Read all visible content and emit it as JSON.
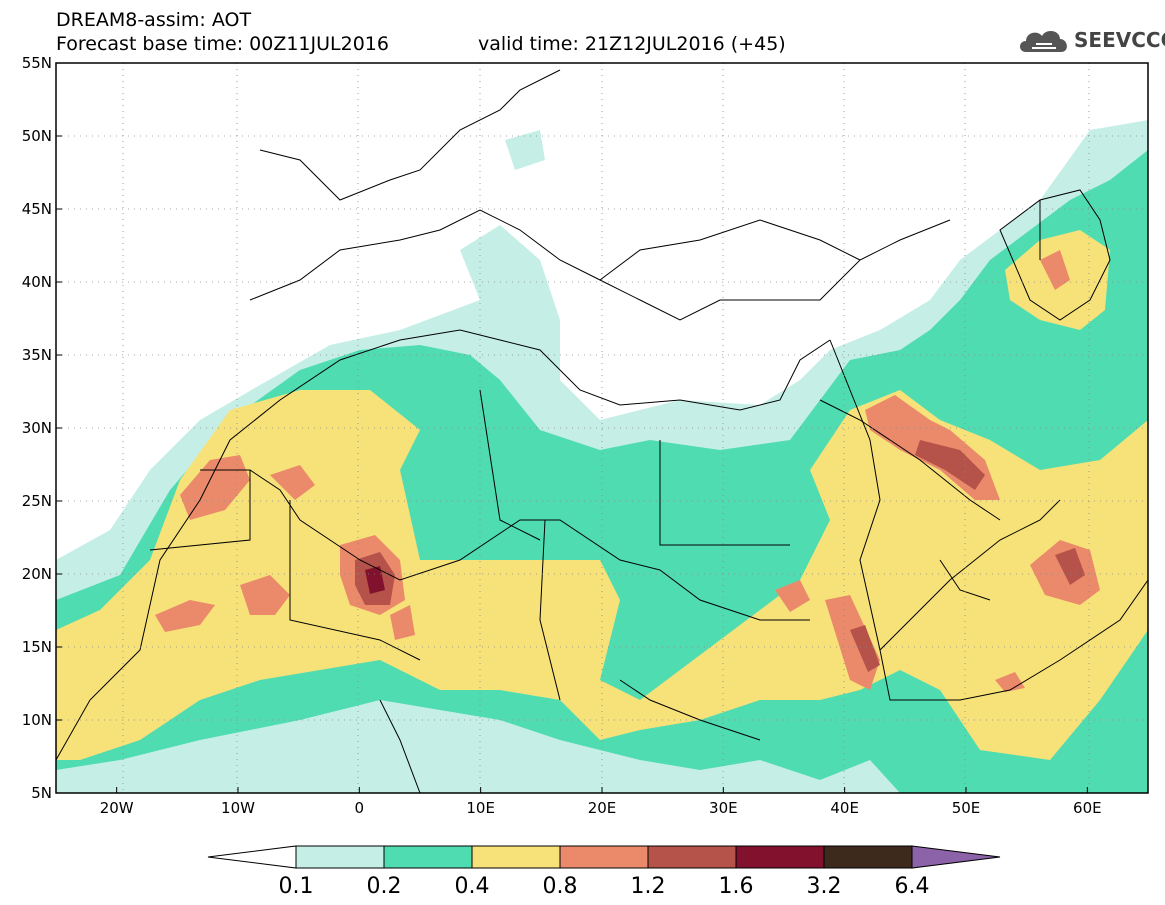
{
  "title": {
    "line1": "DREAM8-assim: AOT",
    "line2": "Forecast base time: 00Z11JUL2016",
    "valid": "valid time: 21Z12JUL2016 (+45)"
  },
  "logo": {
    "text": "SEEVCCC",
    "icon": "cloud-icon"
  },
  "map": {
    "lon_range": [
      -25,
      65
    ],
    "lat_range": [
      5,
      55
    ],
    "lat_ticks": [
      "5N",
      "10N",
      "15N",
      "20N",
      "25N",
      "30N",
      "35N",
      "40N",
      "45N",
      "50N",
      "55N"
    ],
    "lon_ticks": [
      "20W",
      "10W",
      "0",
      "10E",
      "20E",
      "30E",
      "40E",
      "50E",
      "60E"
    ]
  },
  "colorbar": {
    "labels": [
      "0.1",
      "0.2",
      "0.4",
      "0.8",
      "1.2",
      "1.6",
      "3.2",
      "6.4"
    ],
    "colors": [
      "#ffffff",
      "#c5efe6",
      "#4fdcb0",
      "#f7e27a",
      "#ea8a6a",
      "#b5534a",
      "#82112e",
      "#3e2a1d",
      "#8c62a8"
    ]
  }
}
